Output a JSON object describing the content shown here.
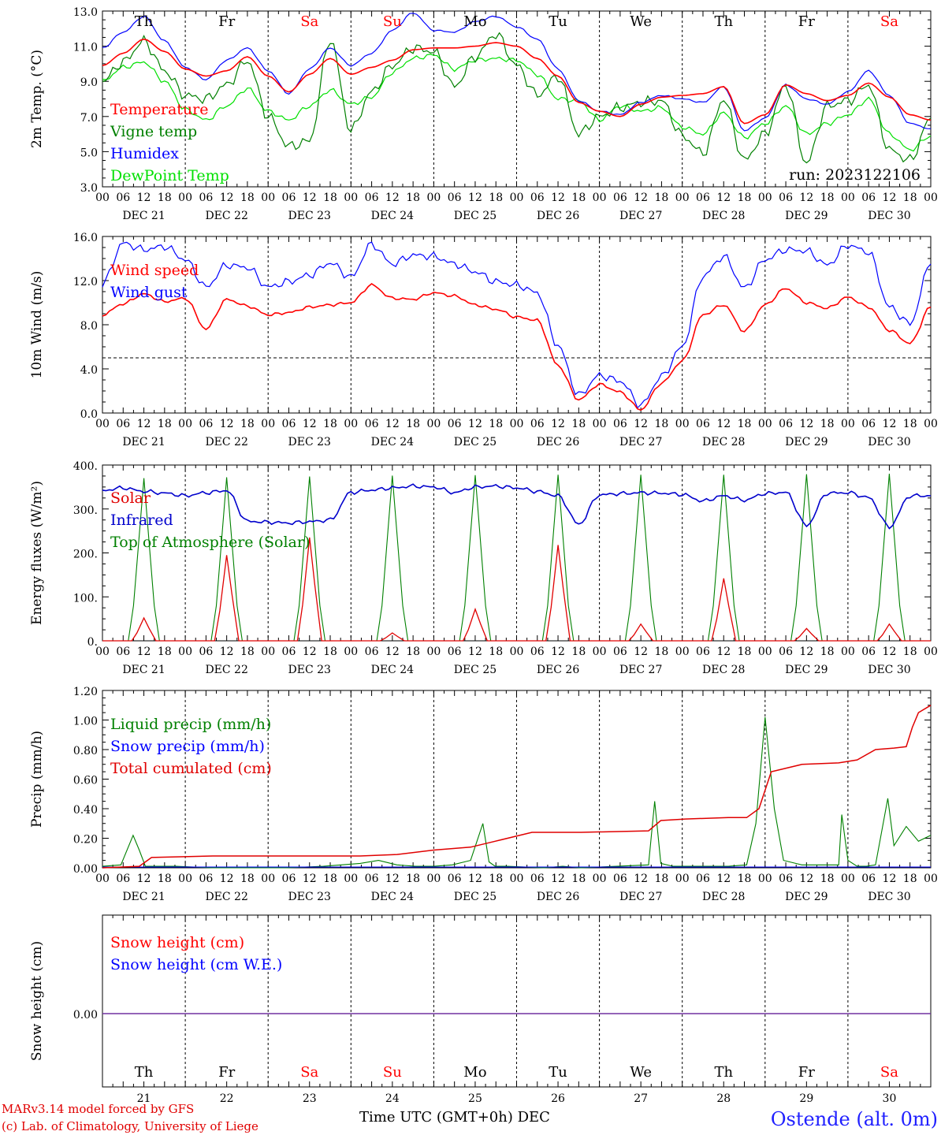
{
  "colors": {
    "temperature": "#ff0000",
    "vigne": "#008000",
    "humidex": "#0000ff",
    "dewpoint": "#00e000",
    "wind_speed": "#ff0000",
    "wind_gust": "#0000ff",
    "solar": "#e00000",
    "infrared": "#0000cc",
    "toa": "#008000",
    "liquid": "#008000",
    "snowp": "#0000ff",
    "cumul": "#e00000",
    "snow_h": "#ff0000",
    "snow_we": "#0000ff",
    "weekday": "#000000",
    "weekend": "#ff0000"
  },
  "days": [
    {
      "date": "DEC 21",
      "num": "21",
      "name": "Th",
      "weekend": false
    },
    {
      "date": "DEC 22",
      "num": "22",
      "name": "Fr",
      "weekend": false
    },
    {
      "date": "DEC 23",
      "num": "23",
      "name": "Sa",
      "weekend": true
    },
    {
      "date": "DEC 24",
      "num": "24",
      "name": "Su",
      "weekend": true
    },
    {
      "date": "DEC 25",
      "num": "25",
      "name": "Mo",
      "weekend": false
    },
    {
      "date": "DEC 26",
      "num": "26",
      "name": "Tu",
      "weekend": false
    },
    {
      "date": "DEC 27",
      "num": "27",
      "name": "We",
      "weekend": false
    },
    {
      "date": "DEC 28",
      "num": "28",
      "name": "Th",
      "weekend": false
    },
    {
      "date": "DEC 29",
      "num": "29",
      "name": "Fr",
      "weekend": false
    },
    {
      "date": "DEC 30",
      "num": "30",
      "name": "Sa",
      "weekend": true
    }
  ],
  "hour_ticks": [
    "00",
    "06",
    "12",
    "18"
  ],
  "final_hour_tick": "00",
  "run_label": "run: 2023122106",
  "footer": {
    "credit_line1": "MARv3.14 model forced by GFS",
    "credit_line2": "(c) Lab. of Climatology, University of Liege",
    "axis_label": "Time UTC (GMT+0h) DEC",
    "station": "Ostende (alt. 0m)"
  },
  "chart_data": [
    {
      "type": "line",
      "id": "temp",
      "ylabel": "2m Temp. (°C)",
      "ylim": [
        3.0,
        13.0
      ],
      "y_ticks": [
        "3.0",
        "5.0",
        "7.0",
        "9.0",
        "11.0",
        "13.0"
      ],
      "x_unit": "hours since DEC 21 00 UTC",
      "xlim": [
        0,
        240
      ],
      "series": [
        {
          "name": "Temperature",
          "color_key": "temperature",
          "x": [
            0,
            6,
            12,
            18,
            24,
            30,
            36,
            42,
            48,
            54,
            60,
            66,
            72,
            78,
            84,
            90,
            96,
            102,
            108,
            114,
            120,
            126,
            132,
            138,
            144,
            150,
            156,
            162,
            168,
            174,
            180,
            186,
            192,
            198,
            204,
            210,
            216,
            222,
            228,
            234,
            240
          ],
          "values": [
            9.9,
            10.6,
            11.4,
            10.7,
            9.7,
            9.3,
            9.6,
            10.4,
            9.3,
            8.4,
            9.4,
            10.3,
            9.4,
            9.8,
            10.2,
            10.8,
            10.9,
            10.9,
            11.0,
            11.2,
            11.0,
            10.3,
            9.3,
            7.8,
            7.3,
            7.0,
            7.7,
            8.1,
            8.2,
            8.3,
            8.7,
            6.6,
            7.1,
            8.8,
            8.3,
            7.9,
            8.2,
            8.9,
            8.1,
            7.1,
            6.8
          ]
        },
        {
          "name": "Vigne temp",
          "color_key": "vigne",
          "x": [
            0,
            6,
            12,
            18,
            24,
            30,
            36,
            42,
            48,
            54,
            60,
            66,
            72,
            78,
            84,
            90,
            96,
            102,
            108,
            114,
            120,
            126,
            132,
            138,
            144,
            150,
            156,
            162,
            168,
            174,
            180,
            186,
            192,
            198,
            204,
            210,
            216,
            222,
            228,
            234,
            240
          ],
          "values": [
            9.0,
            10.1,
            11.3,
            9.6,
            8.2,
            8.0,
            8.8,
            10.2,
            7.0,
            5.3,
            5.6,
            11.4,
            6.2,
            8.4,
            9.9,
            10.9,
            10.7,
            8.7,
            10.4,
            11.7,
            9.9,
            8.2,
            9.3,
            6.0,
            7.0,
            7.5,
            7.8,
            7.9,
            5.9,
            4.9,
            8.0,
            4.5,
            6.0,
            8.8,
            4.3,
            7.6,
            7.9,
            8.8,
            5.1,
            4.5,
            6.9
          ]
        },
        {
          "name": "Humidex",
          "color_key": "humidex",
          "x": [
            0,
            6,
            12,
            18,
            24,
            30,
            36,
            42,
            48,
            54,
            60,
            66,
            72,
            78,
            84,
            90,
            96,
            102,
            108,
            114,
            120,
            126,
            132,
            138,
            144,
            150,
            156,
            162,
            168,
            174,
            180,
            186,
            192,
            198,
            204,
            210,
            216,
            222,
            228,
            234,
            240
          ],
          "values": [
            10.9,
            11.8,
            12.7,
            11.3,
            9.8,
            9.1,
            10.2,
            10.9,
            9.6,
            8.3,
            9.7,
            10.9,
            9.9,
            10.6,
            11.9,
            12.9,
            11.9,
            11.8,
            12.4,
            12.7,
            12.1,
            11.4,
            9.7,
            7.9,
            7.3,
            7.1,
            7.8,
            8.2,
            8.0,
            7.8,
            8.7,
            6.2,
            6.9,
            8.8,
            8.0,
            7.7,
            8.4,
            9.6,
            8.2,
            6.6,
            6.3
          ]
        },
        {
          "name": "DewPoint Temp",
          "color_key": "dewpoint",
          "x": [
            0,
            6,
            12,
            18,
            24,
            30,
            36,
            42,
            48,
            54,
            60,
            66,
            72,
            78,
            84,
            90,
            96,
            102,
            108,
            114,
            120,
            126,
            132,
            138,
            144,
            150,
            156,
            162,
            168,
            174,
            180,
            186,
            192,
            198,
            204,
            210,
            216,
            222,
            228,
            234,
            240
          ],
          "values": [
            9.0,
            9.8,
            10.1,
            9.0,
            7.4,
            6.8,
            7.6,
            8.6,
            7.3,
            6.8,
            7.6,
            8.5,
            7.7,
            8.1,
            9.5,
            10.3,
            10.5,
            9.7,
            10.2,
            10.3,
            10.2,
            9.4,
            8.0,
            7.9,
            6.8,
            7.6,
            7.3,
            7.5,
            6.4,
            6.0,
            7.2,
            5.8,
            6.6,
            7.6,
            6.0,
            6.6,
            7.1,
            8.0,
            6.0,
            5.1,
            5.9
          ]
        }
      ]
    },
    {
      "type": "line",
      "id": "wind",
      "ylabel": "10m Wind (m/s)",
      "ylim": [
        0.0,
        16.0
      ],
      "y_ticks": [
        "0.0",
        "4.0",
        "8.0",
        "12.0",
        "16.0"
      ],
      "reference_line": 5.0,
      "series": [
        {
          "name": "Wind speed",
          "color_key": "wind_speed",
          "x": [
            0,
            6,
            12,
            18,
            24,
            30,
            36,
            42,
            48,
            54,
            60,
            66,
            72,
            78,
            84,
            90,
            96,
            102,
            108,
            114,
            120,
            126,
            132,
            138,
            144,
            150,
            156,
            162,
            168,
            174,
            180,
            186,
            192,
            198,
            204,
            210,
            216,
            222,
            228,
            234,
            240
          ],
          "values": [
            8.9,
            9.9,
            10.8,
            10.1,
            10.4,
            7.6,
            10.3,
            9.7,
            8.9,
            9.1,
            9.6,
            9.8,
            10.0,
            11.6,
            10.4,
            10.3,
            10.9,
            10.6,
            9.8,
            9.4,
            8.7,
            8.4,
            4.3,
            1.2,
            2.6,
            1.9,
            0.3,
            2.7,
            4.7,
            8.9,
            9.8,
            7.4,
            9.8,
            11.3,
            10.0,
            9.5,
            10.5,
            9.6,
            7.5,
            6.3,
            9.6
          ]
        },
        {
          "name": "Wind gust",
          "color_key": "wind_gust",
          "x": [
            0,
            6,
            12,
            18,
            24,
            30,
            36,
            42,
            48,
            54,
            60,
            66,
            72,
            78,
            84,
            90,
            96,
            102,
            108,
            114,
            120,
            126,
            132,
            138,
            144,
            150,
            156,
            162,
            168,
            174,
            180,
            186,
            192,
            198,
            204,
            210,
            216,
            222,
            228,
            234,
            240
          ],
          "values": [
            11.7,
            15.4,
            14.8,
            15.1,
            13.9,
            11.4,
            13.4,
            13.2,
            11.4,
            11.9,
            12.5,
            13.6,
            12.3,
            15.3,
            13.5,
            14.3,
            14.2,
            13.5,
            12.8,
            11.9,
            11.6,
            10.9,
            6.1,
            1.6,
            3.4,
            2.9,
            0.7,
            3.3,
            6.0,
            12.4,
            14.2,
            11.3,
            13.9,
            14.8,
            14.7,
            13.4,
            15.2,
            14.6,
            9.6,
            8.1,
            13.5
          ]
        }
      ]
    },
    {
      "type": "line",
      "id": "energy",
      "ylabel": "Energy fluxes (W/m²)",
      "ylim": [
        0,
        400
      ],
      "y_ticks": [
        "0.",
        "100.",
        "200.",
        "300.",
        "400."
      ],
      "series": [
        {
          "name": "Solar",
          "color_key": "solar",
          "peak_values": [
            52,
            195,
            235,
            18,
            72,
            218,
            38,
            142,
            28,
            38
          ]
        },
        {
          "name": "Infrared",
          "color_key": "infrared",
          "x": [
            0,
            6,
            12,
            18,
            24,
            30,
            36,
            42,
            48,
            54,
            60,
            66,
            72,
            78,
            84,
            90,
            96,
            102,
            108,
            114,
            120,
            126,
            132,
            138,
            144,
            150,
            156,
            162,
            168,
            174,
            180,
            186,
            192,
            198,
            204,
            210,
            216,
            222,
            228,
            234,
            240
          ],
          "values": [
            342,
            348,
            340,
            336,
            330,
            337,
            342,
            272,
            270,
            268,
            271,
            275,
            338,
            343,
            348,
            352,
            350,
            337,
            350,
            352,
            348,
            340,
            330,
            265,
            332,
            335,
            337,
            336,
            333,
            318,
            330,
            320,
            335,
            338,
            262,
            336,
            337,
            326,
            259,
            330,
            330
          ]
        },
        {
          "name": "Top of Atmosphere (Solar)",
          "color_key": "toa",
          "peak_values": [
            370,
            372,
            374,
            376,
            377,
            378,
            378,
            378,
            379,
            380
          ]
        }
      ]
    },
    {
      "type": "line",
      "id": "precip",
      "ylabel": "Precip (mm/h)",
      "ylim": [
        0.0,
        1.2
      ],
      "y_ticks": [
        "0.00",
        "0.20",
        "0.40",
        "0.60",
        "0.80",
        "1.00",
        "1.20"
      ],
      "series": [
        {
          "name": "Liquid precip (mm/h)",
          "color_key": "liquid",
          "x": [
            0,
            6,
            10,
            12,
            14,
            18,
            24,
            36,
            48,
            60,
            72,
            84,
            90,
            96,
            102,
            108,
            114,
            120,
            124,
            126,
            128,
            132,
            144,
            150,
            156,
            178,
            180,
            182,
            186,
            192,
            204,
            210,
            213,
            216,
            219,
            222,
            228,
            240,
            241,
            243,
            246,
            249,
            252,
            256,
            258,
            262,
            266,
            270
          ],
          "values": [
            0.01,
            0.02,
            0.22,
            0.12,
            0.01,
            0.01,
            0.01,
            0.0,
            0.0,
            0.0,
            0.01,
            0.03,
            0.05,
            0.02,
            0.01,
            0.01,
            0.02,
            0.05,
            0.3,
            0.04,
            0.01,
            0.01,
            0.0,
            0.01,
            0.0,
            0.02,
            0.45,
            0.03,
            0.01,
            0.01,
            0.01,
            0.02,
            0.3,
            1.02,
            0.4,
            0.05,
            0.02,
            0.02,
            0.36,
            0.05,
            0.01,
            0.01,
            0.02,
            0.47,
            0.15,
            0.28,
            0.18,
            0.22
          ]
        },
        {
          "name": "Snow precip (mm/h)",
          "color_key": "snowp",
          "values": [
            0
          ]
        },
        {
          "name": "Total cumulated (cm)",
          "color_key": "cumul",
          "x": [
            0,
            12,
            16,
            36,
            48,
            60,
            72,
            84,
            96,
            108,
            114,
            120,
            128,
            140,
            150,
            156,
            178,
            182,
            190,
            204,
            210,
            214,
            218,
            228,
            240,
            246,
            252,
            258,
            262,
            264,
            266,
            270
          ],
          "values": [
            0.0,
            0.01,
            0.07,
            0.08,
            0.08,
            0.08,
            0.08,
            0.08,
            0.09,
            0.12,
            0.13,
            0.14,
            0.18,
            0.24,
            0.24,
            0.24,
            0.25,
            0.32,
            0.33,
            0.34,
            0.34,
            0.4,
            0.65,
            0.7,
            0.71,
            0.73,
            0.8,
            0.81,
            0.82,
            0.95,
            1.05,
            1.1
          ]
        }
      ]
    },
    {
      "type": "line",
      "id": "snow",
      "ylabel": "Snow height (cm)",
      "y_ticks": [
        "0.00"
      ],
      "series": [
        {
          "name": "Snow height (cm)",
          "color_key": "snow_h",
          "values": [
            0
          ]
        },
        {
          "name": "Snow height (cm W.E.)",
          "color_key": "snow_we",
          "values": [
            0
          ]
        }
      ]
    }
  ]
}
